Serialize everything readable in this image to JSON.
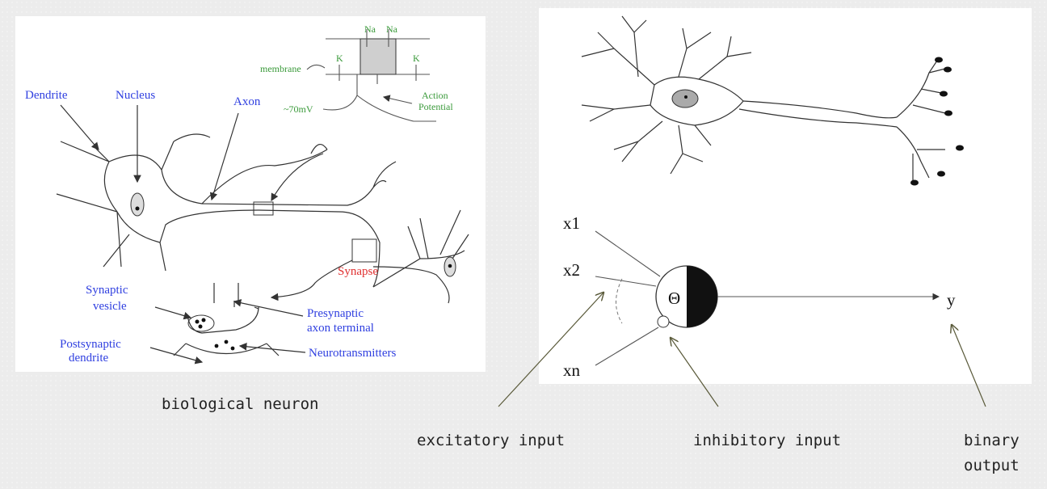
{
  "left_diagram": {
    "labels": {
      "dendrite": "Dendrite",
      "nucleus": "Nucleus",
      "axon": "Axon",
      "synapse": "Synapse",
      "synaptic_vesicle_1": "Synaptic",
      "synaptic_vesicle_2": "vesicle",
      "presynaptic_1": "Presynaptic",
      "presynaptic_2": "axon terminal",
      "postsynaptic_1": "Postsynaptic",
      "postsynaptic_2": "dendrite",
      "neurotransmitters": "Neurotransmitters",
      "membrane": "membrane",
      "na1": "Na",
      "na2": "Na",
      "k1": "K",
      "k2": "K",
      "voltage": "~70mV",
      "action_1": "Action",
      "action_2": "Potential"
    },
    "caption": "biological neuron"
  },
  "right_diagram": {
    "inputs": [
      "x1",
      "x2",
      "xn"
    ],
    "threshold_symbol": "Θ",
    "output": "y",
    "annotations": {
      "excitatory": "excitatory input",
      "inhibitory": "inhibitory input",
      "binary_1": "binary",
      "binary_2": "output"
    }
  },
  "colors": {
    "label_blue": "#2f3fe0",
    "label_green": "#3a9a3a",
    "label_red": "#e03030",
    "arrow_olive": "#5a5a3a"
  }
}
